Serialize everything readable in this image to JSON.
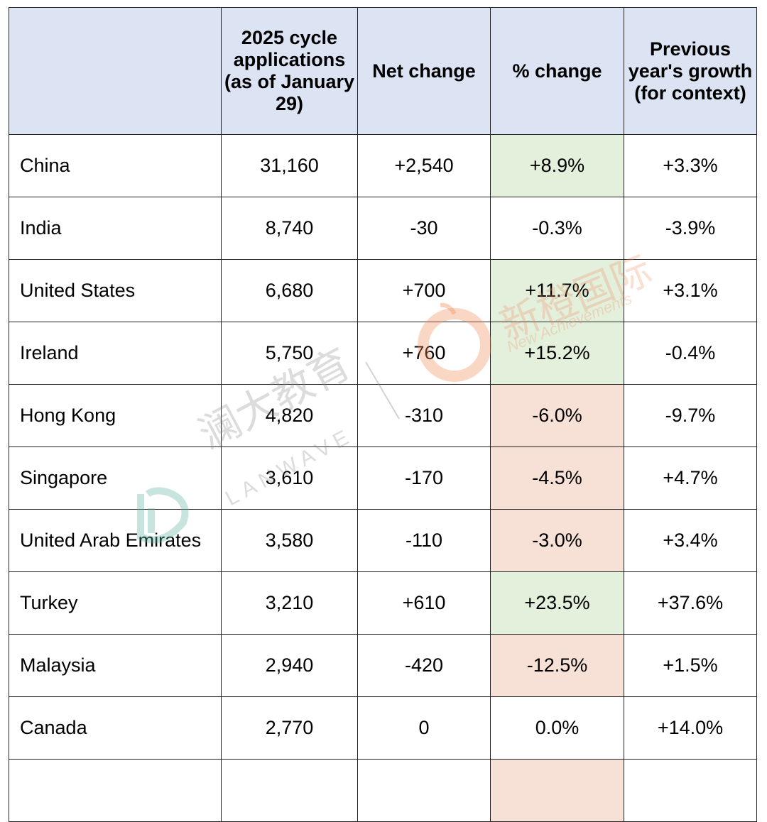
{
  "header": {
    "country": "",
    "applications": "2025 cycle applications (as of January 29)",
    "net_change": "Net change",
    "pct_change": "% change",
    "prev_growth": "Previous year's growth (for context)"
  },
  "rows": [
    {
      "country": "China",
      "applications": "31,160",
      "net_change": "+2,540",
      "pct_change": "+8.9%",
      "prev_growth": "+3.3%",
      "trend": "pos"
    },
    {
      "country": "India",
      "applications": "8,740",
      "net_change": "-30",
      "pct_change": "-0.3%",
      "prev_growth": "-3.9%",
      "trend": "neutral"
    },
    {
      "country": "United States",
      "applications": "6,680",
      "net_change": "+700",
      "pct_change": "+11.7%",
      "prev_growth": "+3.1%",
      "trend": "pos"
    },
    {
      "country": "Ireland",
      "applications": "5,750",
      "net_change": "+760",
      "pct_change": "+15.2%",
      "prev_growth": "-0.4%",
      "trend": "pos"
    },
    {
      "country": "Hong Kong",
      "applications": "4,820",
      "net_change": "-310",
      "pct_change": "-6.0%",
      "prev_growth": "-9.7%",
      "trend": "neg"
    },
    {
      "country": "Singapore",
      "applications": "3,610",
      "net_change": "-170",
      "pct_change": "-4.5%",
      "prev_growth": "+4.7%",
      "trend": "neg"
    },
    {
      "country": "United Arab Emirates",
      "applications": "3,580",
      "net_change": "-110",
      "pct_change": "-3.0%",
      "prev_growth": "+3.4%",
      "trend": "neg"
    },
    {
      "country": "Turkey",
      "applications": "3,210",
      "net_change": "+610",
      "pct_change": "+23.5%",
      "prev_growth": "+37.6%",
      "trend": "pos"
    },
    {
      "country": "Malaysia",
      "applications": "2,940",
      "net_change": "-420",
      "pct_change": "-12.5%",
      "prev_growth": "+1.5%",
      "trend": "neg"
    },
    {
      "country": "Canada",
      "applications": "2,770",
      "net_change": "0",
      "pct_change": "0.0%",
      "prev_growth": "+14.0%",
      "trend": "neutral"
    },
    {
      "country": "",
      "applications": "",
      "net_change": "",
      "pct_change": "",
      "prev_growth": "",
      "trend": "neg"
    }
  ],
  "watermarks": {
    "lanwave_cn": "澜大教育",
    "lanwave_en": "LANWAVE",
    "xincheng_cn": "新橙国际",
    "xincheng_en": "New Achievements"
  },
  "colors": {
    "header_bg": "#dce3f3",
    "positive_bg": "#e3f0dc",
    "negative_bg": "#f7e1d6",
    "border": "#222222"
  }
}
